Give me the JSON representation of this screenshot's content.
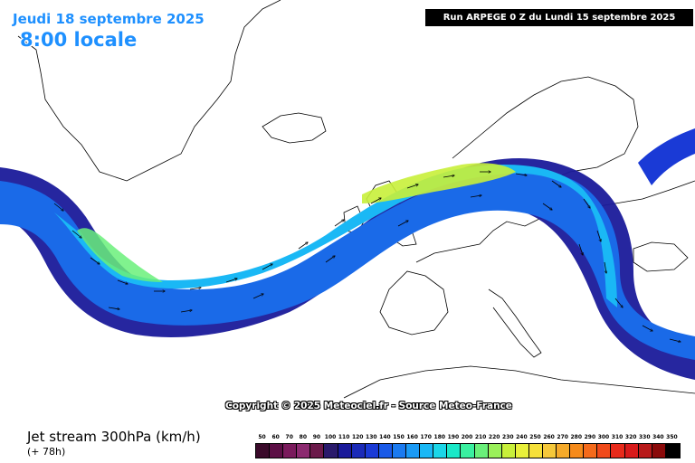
{
  "header": {
    "date": "Jeudi 18 septembre 2025",
    "time": "8:00 locale",
    "run": "Run ARPEGE 0 Z du Lundi 15 septembre 2025"
  },
  "copyright": "Copyright © 2025 Meteociel.fr - Source Meteo-France",
  "legend": {
    "title": "Jet stream 300hPa (km/h)",
    "subtitle": "(+ 78h)",
    "scale": [
      {
        "value": "50",
        "color": "#3a0a2a"
      },
      {
        "value": "60",
        "color": "#5c0f45"
      },
      {
        "value": "70",
        "color": "#7a1a5c"
      },
      {
        "value": "80",
        "color": "#8c2a70"
      },
      {
        "value": "90",
        "color": "#6b1a4a"
      },
      {
        "value": "100",
        "color": "#2a1a6b"
      },
      {
        "value": "110",
        "color": "#1a1a9a"
      },
      {
        "value": "120",
        "color": "#1a2ab8"
      },
      {
        "value": "130",
        "color": "#1a3ad6"
      },
      {
        "value": "140",
        "color": "#1a5ae8"
      },
      {
        "value": "150",
        "color": "#1a7af0"
      },
      {
        "value": "160",
        "color": "#1a9af5"
      },
      {
        "value": "170",
        "color": "#1ab8f5"
      },
      {
        "value": "180",
        "color": "#1ad6e8"
      },
      {
        "value": "190",
        "color": "#1ae8c8"
      },
      {
        "value": "200",
        "color": "#3af0a0"
      },
      {
        "value": "210",
        "color": "#6af07a"
      },
      {
        "value": "220",
        "color": "#9af05a"
      },
      {
        "value": "230",
        "color": "#c8f03a"
      },
      {
        "value": "240",
        "color": "#e8f03a"
      },
      {
        "value": "250",
        "color": "#f5e03a"
      },
      {
        "value": "260",
        "color": "#f5c83a"
      },
      {
        "value": "270",
        "color": "#f5aa2a"
      },
      {
        "value": "280",
        "color": "#f58a1a"
      },
      {
        "value": "290",
        "color": "#f56a1a"
      },
      {
        "value": "300",
        "color": "#f04a1a"
      },
      {
        "value": "310",
        "color": "#e82a1a"
      },
      {
        "value": "320",
        "color": "#d81a1a"
      },
      {
        "value": "330",
        "color": "#b81a1a"
      },
      {
        "value": "340",
        "color": "#8a0a0a"
      },
      {
        "value": "350",
        "color": "#000000"
      }
    ]
  }
}
